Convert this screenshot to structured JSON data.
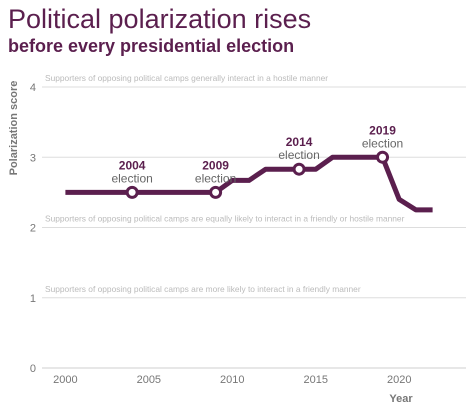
{
  "colors": {
    "accent": "#5b1f4e",
    "grid": "#dddddd",
    "annotation": "#bbbbbb",
    "axis_text": "#777777"
  },
  "chart_data": {
    "type": "line",
    "title": "Political polarization rises",
    "subtitle": "before every presidential election",
    "xlabel": "Year",
    "ylabel": "Polarization score",
    "xlim": [
      1998.6,
      2024
    ],
    "ylim": [
      0,
      4
    ],
    "x_ticks": [
      2000,
      2005,
      2010,
      2015,
      2020
    ],
    "y_ticks": [
      0,
      1,
      2,
      3,
      4
    ],
    "grid": true,
    "legend": "none",
    "series": [
      {
        "x": [
          2000,
          2004,
          2009,
          2010,
          2011,
          2012,
          2013,
          2014,
          2015,
          2016,
          2017,
          2018,
          2019,
          2020,
          2021,
          2022
        ],
        "y": [
          2.5,
          2.5,
          2.5,
          2.67,
          2.67,
          2.83,
          2.83,
          2.83,
          2.83,
          3.0,
          3.0,
          3.0,
          3.0,
          2.4,
          2.25,
          2.25
        ]
      }
    ],
    "reference_lines": [
      {
        "y": 4,
        "text": "Supporters of opposing political camps generally interact in a hostile manner"
      },
      {
        "y": 2,
        "text": "Supporters of opposing political camps are equally likely to interact in a friendly or hostile manner"
      },
      {
        "y": 1,
        "text": "Supporters of opposing political camps are more likely to interact in a friendly manner"
      }
    ],
    "annotations": [
      {
        "x": 2004,
        "y": 2.5,
        "year": "2004",
        "text": "election"
      },
      {
        "x": 2009,
        "y": 2.5,
        "year": "2009",
        "text": "election"
      },
      {
        "x": 2014,
        "y": 2.83,
        "year": "2014",
        "text": "election"
      },
      {
        "x": 2019,
        "y": 3.0,
        "year": "2019",
        "text": "election"
      }
    ]
  }
}
